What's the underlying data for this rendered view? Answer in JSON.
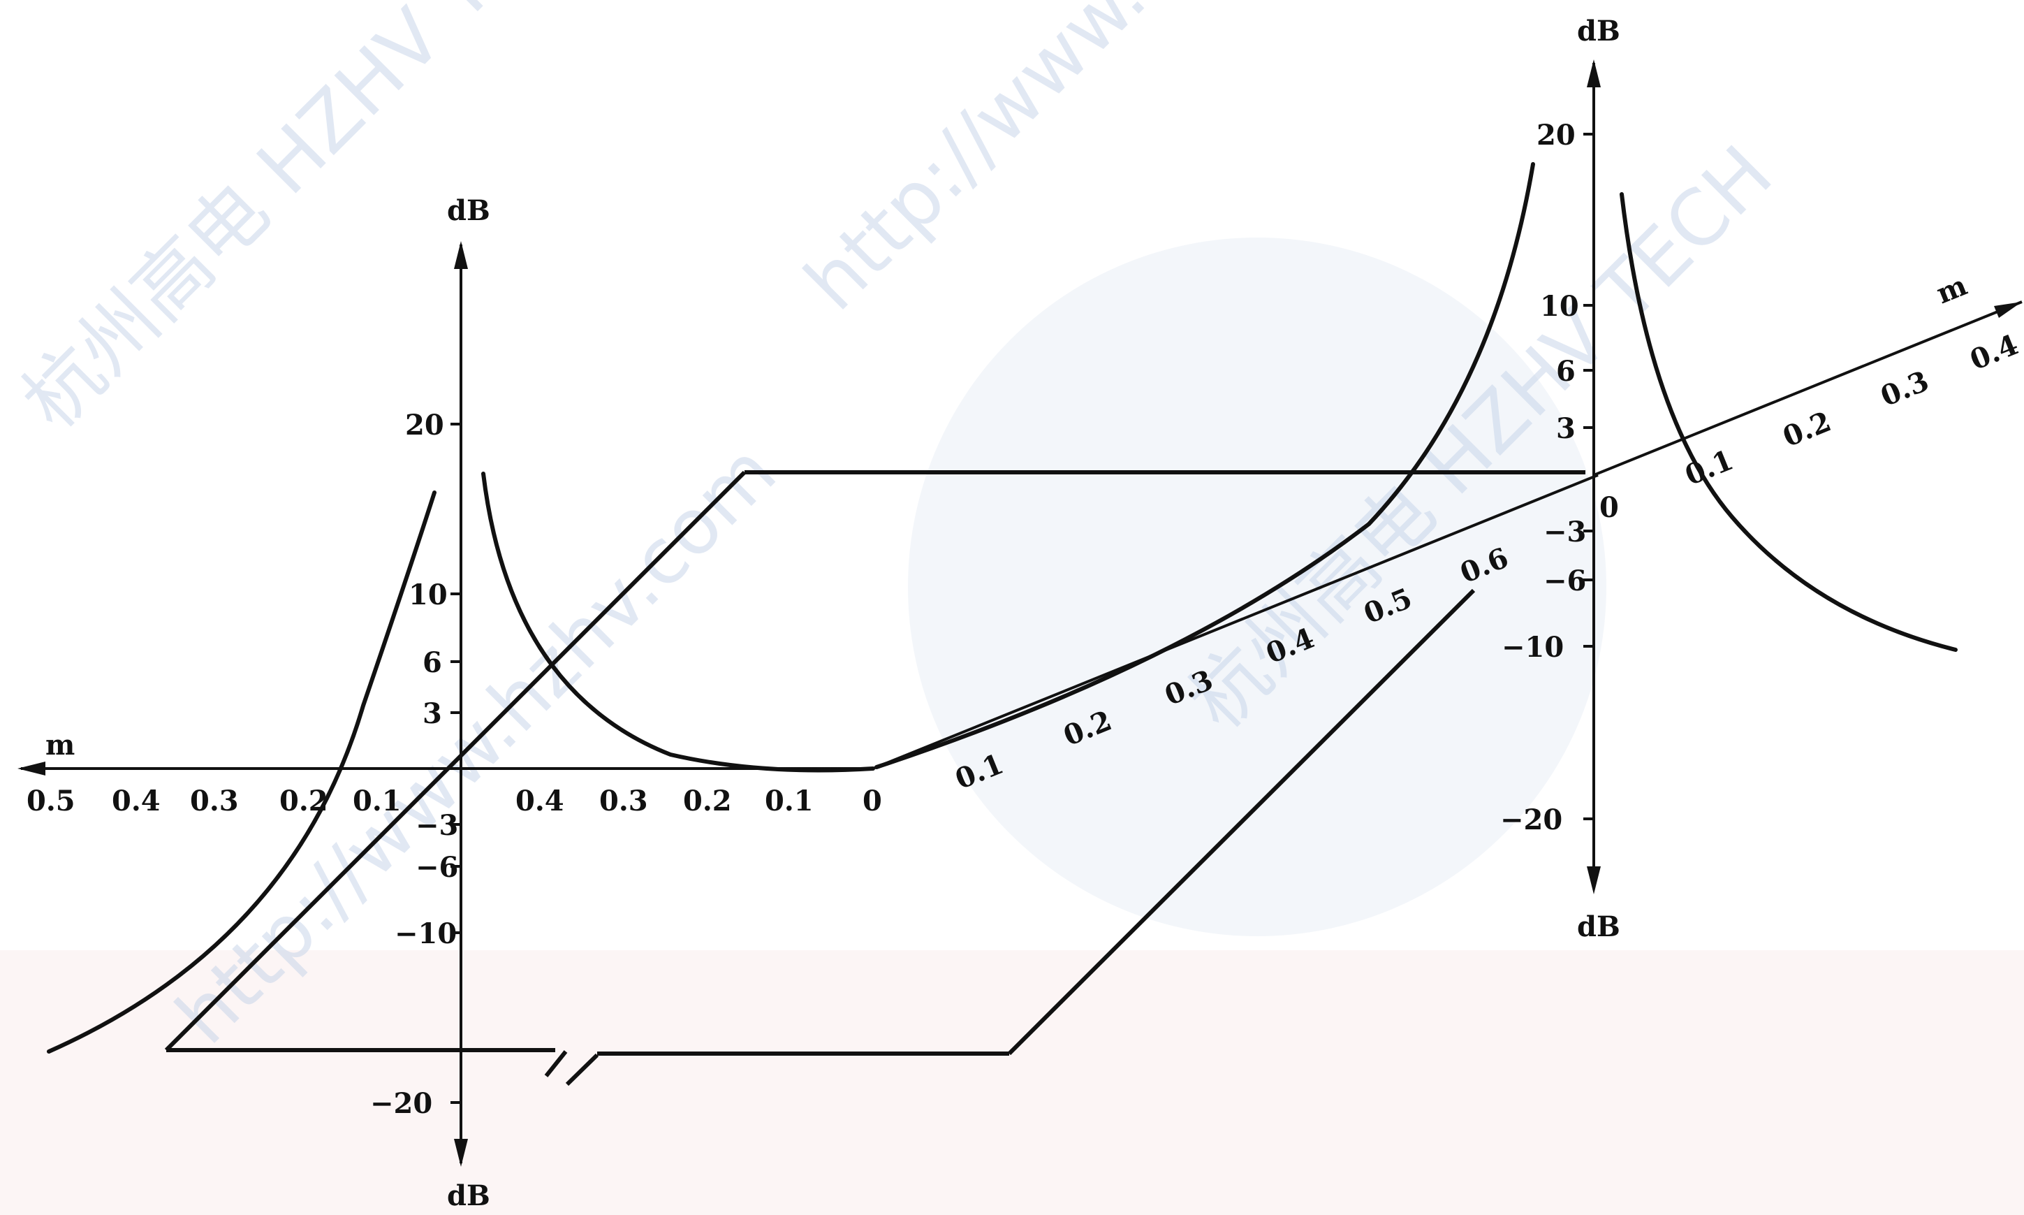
{
  "watermark": {
    "line1": "杭州高电 HZHV TECH",
    "line2": "http://www.hzhv.com",
    "color_blue": "#2a4fb0",
    "color_red": "#d8232a"
  },
  "left_panel": {
    "y_axis_label_top": "dB",
    "y_axis_label_bottom": "dB",
    "m_axis_label": "m",
    "y_ticks": [
      "20",
      "10",
      "6",
      "3",
      "−3",
      "−6",
      "−10",
      "−20"
    ],
    "m_ticks_left": [
      "0.5",
      "0.4",
      "0.3",
      "0.2",
      "0.1"
    ],
    "m_ticks_right": [
      "0.4",
      "0.3",
      "0.2",
      "0.1",
      "0"
    ]
  },
  "center_axis": {
    "m_ticks": [
      "0.1",
      "0.2",
      "0.3",
      "0.4",
      "0.5",
      "0.6"
    ]
  },
  "right_panel": {
    "y_axis_label_top": "dB",
    "y_axis_label_bottom": "dB",
    "m_axis_label": "m",
    "origin_label": "0",
    "y_ticks": [
      "20",
      "10",
      "6",
      "3",
      "−3",
      "−6",
      "−10",
      "−20"
    ],
    "m_ticks": [
      "0.1",
      "0.2",
      "0.3",
      "0.4"
    ]
  }
}
